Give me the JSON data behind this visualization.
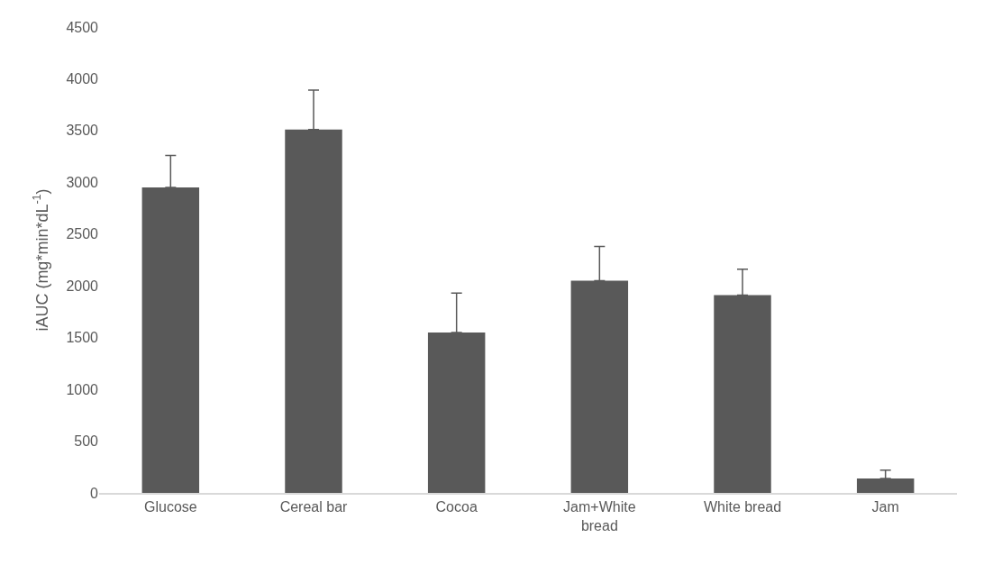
{
  "chart_data": {
    "type": "bar",
    "ylabel": "iAUC (mg*min*dL$^{-1}$)",
    "categories": [
      "Glucose",
      "Cereal bar",
      "Cocoa",
      "Jam+White bread",
      "White bread",
      "Jam"
    ],
    "values": [
      2950,
      3510,
      1550,
      2050,
      1910,
      140
    ],
    "errors": [
      [
        2950,
        3260
      ],
      [
        3510,
        3890
      ],
      [
        1550,
        1930
      ],
      [
        2050,
        2380
      ],
      [
        1910,
        2160
      ],
      [
        140,
        220
      ]
    ],
    "color": "#595959",
    "ylim": [
      0,
      4500
    ],
    "yticks": [
      0,
      500,
      1000,
      1500,
      2000,
      2500,
      3000,
      3500,
      4000,
      4500
    ],
    "grid": false
  }
}
